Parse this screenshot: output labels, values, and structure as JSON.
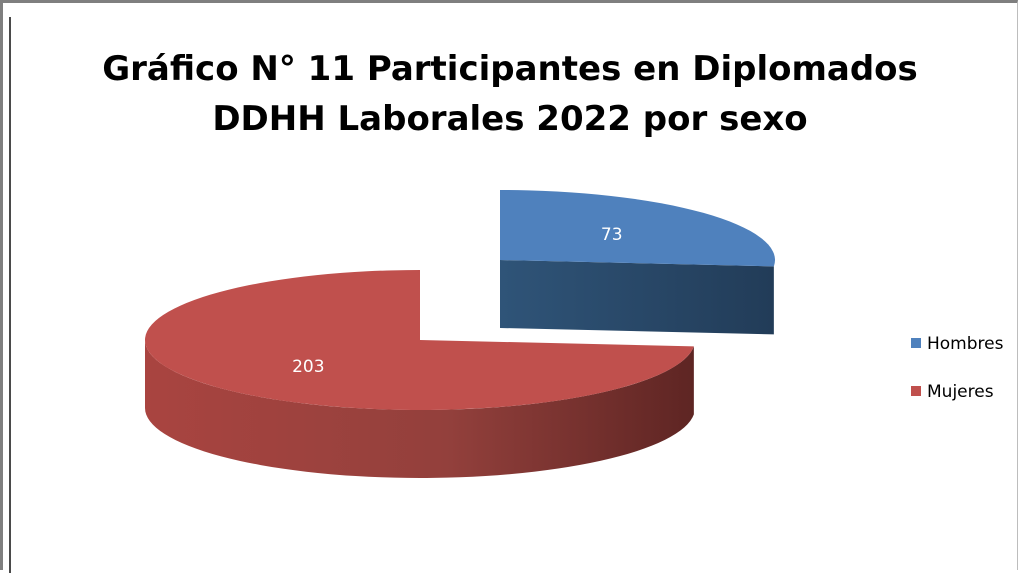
{
  "chart_data": {
    "type": "pie",
    "title_lines": [
      "Gráfico N° 11 Participantes en Diplomados",
      "DDHH Laborales 2022 por sexo"
    ],
    "categories": [
      "Hombres",
      "Mujeres"
    ],
    "values": [
      73,
      203
    ],
    "colors": [
      "#4f81bd",
      "#c0504d"
    ],
    "side_colors": [
      "#2b4a6b",
      "#7a2f2c"
    ],
    "legend_position": "right",
    "exploded": true,
    "three_d": true
  }
}
